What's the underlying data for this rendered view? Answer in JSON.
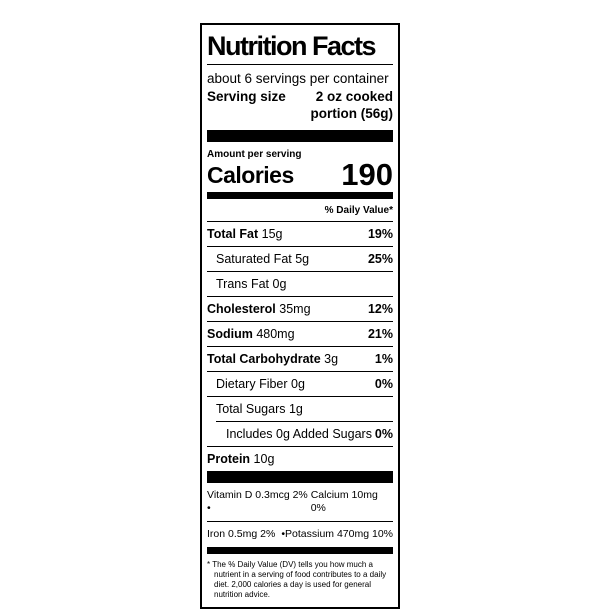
{
  "label": {
    "title": "Nutrition Facts",
    "servings_per_container": "about 6 servings per container",
    "serving_size_label": "Serving size",
    "serving_size_value": "2 oz cooked\nportion (56g)",
    "amount_per_serving": "Amount per serving",
    "calories_label": "Calories",
    "calories_value": "190",
    "daily_value_header": "% Daily Value*",
    "rows": [
      {
        "name": "Total Fat",
        "amount": "15g",
        "dv": "19%"
      },
      {
        "name": "Saturated Fat",
        "amount": "5g",
        "dv": "25%"
      },
      {
        "name": "Trans Fat",
        "amount": "0g",
        "dv": ""
      },
      {
        "name": "Cholesterol",
        "amount": "35mg",
        "dv": "12%"
      },
      {
        "name": "Sodium",
        "amount": "480mg",
        "dv": "21%"
      },
      {
        "name": "Total Carbohydrate",
        "amount": "3g",
        "dv": "1%"
      },
      {
        "name": "Dietary Fiber",
        "amount": "0g",
        "dv": "0%"
      },
      {
        "name": "Total Sugars",
        "amount": "1g",
        "dv": ""
      },
      {
        "name": "Includes 0g Added Sugars",
        "amount": "",
        "dv": "0%"
      },
      {
        "name": "Protein",
        "amount": "10g",
        "dv": ""
      }
    ],
    "micronutrients": [
      {
        "left": "Vitamin D 0.3mcg 2% •",
        "right": "Calcium 10mg 0%"
      },
      {
        "left": "Iron 0.5mg 2%",
        "right": "•Potassium 470mg 10%"
      }
    ],
    "footnote": "* The % Daily Value (DV) tells you how much a nutrient in a serving of food contributes to a daily diet. 2,000 calories a day is used for general nutrition advice.",
    "colors": {
      "ink": "#000000",
      "background": "#ffffff"
    }
  }
}
